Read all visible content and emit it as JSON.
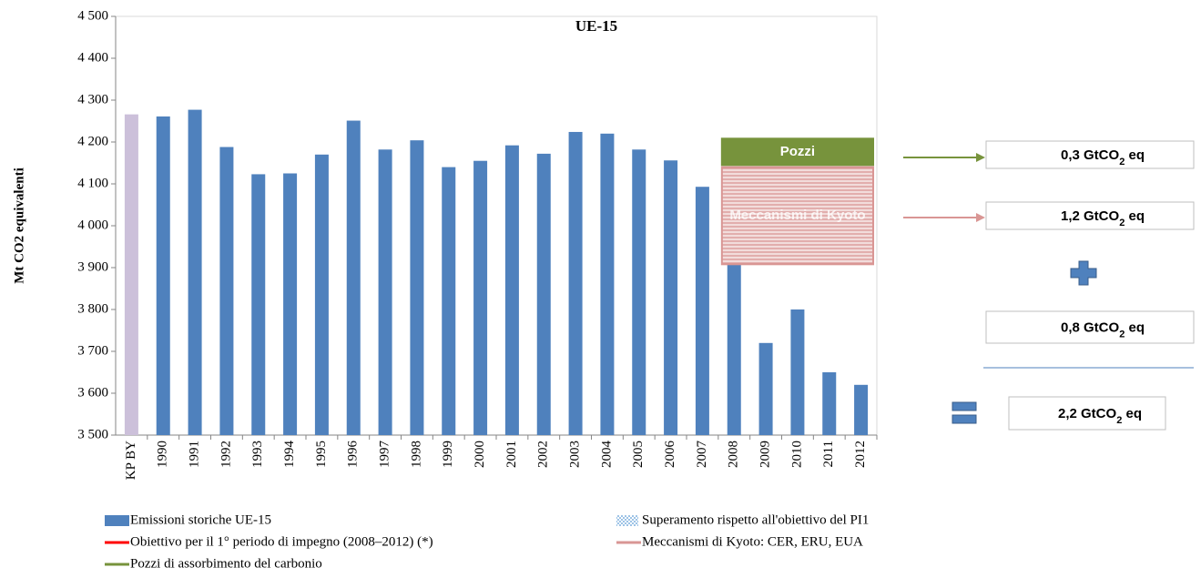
{
  "chart_data": {
    "type": "bar",
    "title": "UE-15",
    "y_label": "Mt CO2 equivalenti",
    "categories": [
      "KP BY",
      "1990",
      "1991",
      "1992",
      "1993",
      "1994",
      "1995",
      "1996",
      "1997",
      "1998",
      "1999",
      "2000",
      "2001",
      "2002",
      "2003",
      "2004",
      "2005",
      "2006",
      "2007",
      "2008",
      "2009",
      "2010",
      "2011",
      "2012"
    ],
    "series": [
      {
        "name": "Emissioni storiche UE-15",
        "color": "#4f81bd",
        "values": [
          4266,
          4261,
          4277,
          4188,
          4123,
          4125,
          4170,
          4251,
          4182,
          4204,
          4140,
          4155,
          4192,
          4172,
          4224,
          4220,
          4182,
          4156,
          4093,
          4005,
          3720,
          3800,
          3650,
          3620
        ]
      }
    ],
    "base_year_color": "#ccc0da",
    "ylim": [
      3500,
      4500
    ],
    "yticks": [
      {
        "value": 3500,
        "label": "3 500"
      },
      {
        "value": 3600,
        "label": "3 600"
      },
      {
        "value": 3700,
        "label": "3 700"
      },
      {
        "value": 3800,
        "label": "3 800"
      },
      {
        "value": 3900,
        "label": "3 900"
      },
      {
        "value": 4000,
        "label": "4 000"
      },
      {
        "value": 4100,
        "label": "4 100"
      },
      {
        "value": 4200,
        "label": "4 200"
      },
      {
        "value": 4300,
        "label": "4 300"
      },
      {
        "value": 4400,
        "label": "4 400"
      },
      {
        "value": 4500,
        "label": "4 500"
      }
    ],
    "grid": false,
    "boxes": [
      {
        "label": "Pozzi",
        "range": [
          4208,
          4145
        ],
        "color": "#77933c"
      },
      {
        "label": "Meccanismi di Kyoto",
        "range": [
          4140,
          3908
        ],
        "color": "#d99694"
      }
    ],
    "legend_items": [
      {
        "name": "Superamento rispetto all'obiettivo del PI1",
        "color": "#9dc3e6",
        "style": "pattern"
      },
      {
        "name": "Obiettivo per il 1° periodo di impegno (2008–2012) (*)",
        "color": "#ff0000",
        "style": "line"
      },
      {
        "name": "Meccanismi di Kyoto: CER, ERU, EUA",
        "color": "#d99694",
        "style": "line"
      },
      {
        "name": "Pozzi di assorbimento del carbonio",
        "color": "#77933c",
        "style": "line"
      }
    ]
  },
  "side_boxes": [
    {
      "main": "0,3 GtCO",
      "sub": "2",
      "tail": " eq"
    },
    {
      "main": "1,2 GtCO",
      "sub": "2",
      "tail": " eq"
    },
    {
      "main": "0,8 GtCO",
      "sub": "2",
      "tail": " eq"
    },
    {
      "main": "2,2 GtCO",
      "sub": "2",
      "tail": " eq"
    }
  ]
}
